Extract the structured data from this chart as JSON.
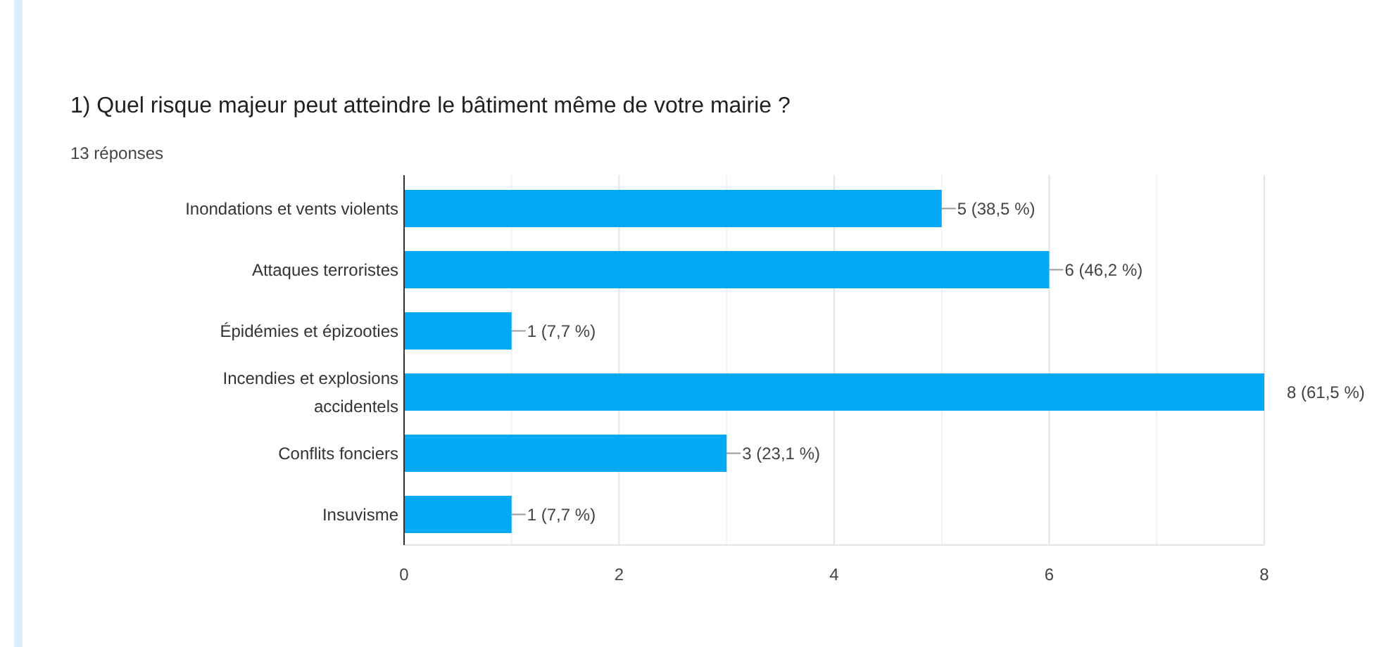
{
  "chart_data": {
    "type": "bar",
    "orientation": "horizontal",
    "title": "1) Quel risque majeur peut atteindre le bâtiment même de votre mairie ?",
    "subtitle": "13 réponses",
    "categories": [
      "Inondations et vents violents",
      "Attaques terroristes",
      "Épidémies et épizooties",
      "Incendies et explosions accidentels",
      "Conflits fonciers",
      "Insuvisme"
    ],
    "values": [
      5,
      6,
      1,
      8,
      3,
      1
    ],
    "value_labels": [
      "5 (38,5 %)",
      "6 (46,2 %)",
      "1 (7,7 %)",
      "8 (61,5 %)",
      "3 (23,1 %)",
      "1 (7,7 %)"
    ],
    "color": "#03a9f4",
    "xlim": [
      0,
      8
    ],
    "xticks": [
      0,
      {
        "value": 1,
        "label": null
      },
      2,
      {
        "value": 3,
        "label": null
      },
      4,
      {
        "value": 5,
        "label": null
      },
      6,
      {
        "value": 7,
        "label": null
      },
      8
    ],
    "grid": "x"
  }
}
